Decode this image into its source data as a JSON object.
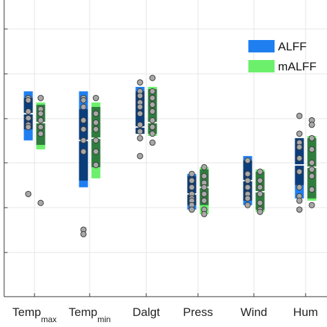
{
  "chart_data": {
    "type": "box",
    "title": "",
    "xlabel": "",
    "ylabel": "",
    "ylim": [
      0,
      6
    ],
    "grid": true,
    "legend_position": "top-right",
    "categories": [
      {
        "base": "Temp",
        "sub": "max"
      },
      {
        "base": "Temp",
        "sub": "min"
      },
      {
        "base": "Dalgt",
        "sub": ""
      },
      {
        "base": "Press",
        "sub": ""
      },
      {
        "base": "Wind",
        "sub": ""
      },
      {
        "base": "Hum",
        "sub": ""
      }
    ],
    "series": [
      {
        "name": "ALFF",
        "color": "#1f7ff0",
        "inner_color": "#0b3d7a",
        "boxes": [
          {
            "whisker_low": 3.5,
            "q1": 3.75,
            "median": 4.1,
            "q3": 4.45,
            "whisker_high": 4.6
          },
          {
            "whisker_low": 2.45,
            "q1": 2.6,
            "median": 3.5,
            "q3": 4.2,
            "whisker_high": 4.6
          },
          {
            "whisker_low": 3.65,
            "q1": 3.65,
            "median": 3.8,
            "q3": 4.6,
            "whisker_high": 4.7
          },
          {
            "whisker_low": 1.95,
            "q1": 2.05,
            "median": 2.3,
            "q3": 2.7,
            "whisker_high": 2.75
          },
          {
            "whisker_low": 2.05,
            "q1": 2.15,
            "median": 2.6,
            "q3": 3.05,
            "whisker_high": 3.15
          },
          {
            "whisker_low": 2.2,
            "q1": 2.5,
            "median": 2.95,
            "q3": 3.55,
            "whisker_high": 3.55
          }
        ],
        "points": [
          [
            4.45,
            4.4,
            4.15,
            4.0,
            3.85,
            3.8,
            2.3
          ],
          [
            4.45,
            4.4,
            4.25,
            3.95,
            3.75,
            3.5,
            3.25,
            1.5,
            1.4
          ],
          [
            4.8,
            4.6,
            4.5,
            4.35,
            4.25,
            4.1,
            3.85,
            3.7,
            3.55,
            3.15
          ],
          [
            2.75,
            2.6,
            2.45,
            2.3,
            2.2,
            2.15,
            2.05,
            1.95
          ],
          [
            3.05,
            2.75,
            2.6,
            2.45,
            2.3,
            2.2,
            2.05
          ],
          [
            4.05,
            3.65,
            3.45,
            3.35,
            3.1,
            2.8,
            2.45,
            2.25,
            2.15,
            1.95
          ]
        ]
      },
      {
        "name": "mALFF",
        "color": "#6cf06c",
        "inner_color": "#2e7d3e",
        "boxes": [
          {
            "whisker_low": 3.3,
            "q1": 3.4,
            "median": 3.9,
            "q3": 4.3,
            "whisker_high": 4.35
          },
          {
            "whisker_low": 2.65,
            "q1": 2.9,
            "median": 3.55,
            "q3": 4.25,
            "whisker_high": 4.35
          },
          {
            "whisker_low": 3.6,
            "q1": 3.65,
            "median": 3.9,
            "q3": 4.65,
            "whisker_high": 4.7
          },
          {
            "whisker_low": 1.85,
            "q1": 2.05,
            "median": 2.45,
            "q3": 2.85,
            "whisker_high": 2.9
          },
          {
            "whisker_low": 1.9,
            "q1": 1.95,
            "median": 2.35,
            "q3": 2.8,
            "whisker_high": 2.85
          },
          {
            "whisker_low": 2.15,
            "q1": 2.2,
            "median": 2.9,
            "q3": 3.55,
            "whisker_high": 3.6
          }
        ],
        "points": [
          [
            4.45,
            4.2,
            4.1,
            3.95,
            3.8,
            3.65,
            2.1
          ],
          [
            4.45,
            4.1,
            3.9,
            3.75,
            3.5,
            3.25,
            2.95
          ],
          [
            4.9,
            4.6,
            4.45,
            4.3,
            4.15,
            3.95,
            3.8,
            3.65,
            3.45
          ],
          [
            2.9,
            2.7,
            2.55,
            2.45,
            2.3,
            2.15,
            1.95,
            1.85
          ],
          [
            2.8,
            2.6,
            2.45,
            2.3,
            2.1,
            1.95,
            1.9
          ],
          [
            3.95,
            3.85,
            3.55,
            3.3,
            3.0,
            2.85,
            2.7,
            2.4,
            2.05
          ]
        ]
      }
    ]
  }
}
